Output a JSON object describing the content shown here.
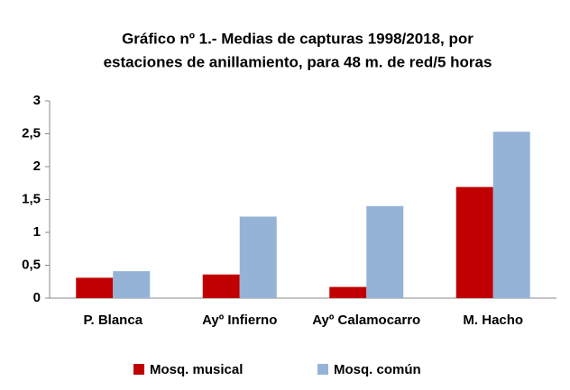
{
  "chart_data": {
    "type": "bar",
    "title": [
      "Gráfico nº 1.- Medias de capturas 1998/2018, por",
      "estaciones de anillamiento, para 48 m. de red/5 horas"
    ],
    "categories": [
      "P. Blanca",
      "Ayº Infierno",
      "Ayº Calamocarro",
      "M. Hacho"
    ],
    "series": [
      {
        "name": "Mosq. musical",
        "color": "#c00000",
        "values": [
          0.31,
          0.36,
          0.17,
          1.69
        ]
      },
      {
        "name": "Mosq. común",
        "color": "#95b3d7",
        "values": [
          0.41,
          1.24,
          1.4,
          2.53
        ]
      }
    ],
    "ylim": [
      0,
      3
    ],
    "yticks": [
      0,
      {
        "value": 0.5,
        "label": "0,5"
      },
      1,
      {
        "value": 1.5,
        "label": "1,5"
      },
      2,
      {
        "value": 2.5,
        "label": "2,5"
      },
      3
    ],
    "legend": "bottom"
  }
}
